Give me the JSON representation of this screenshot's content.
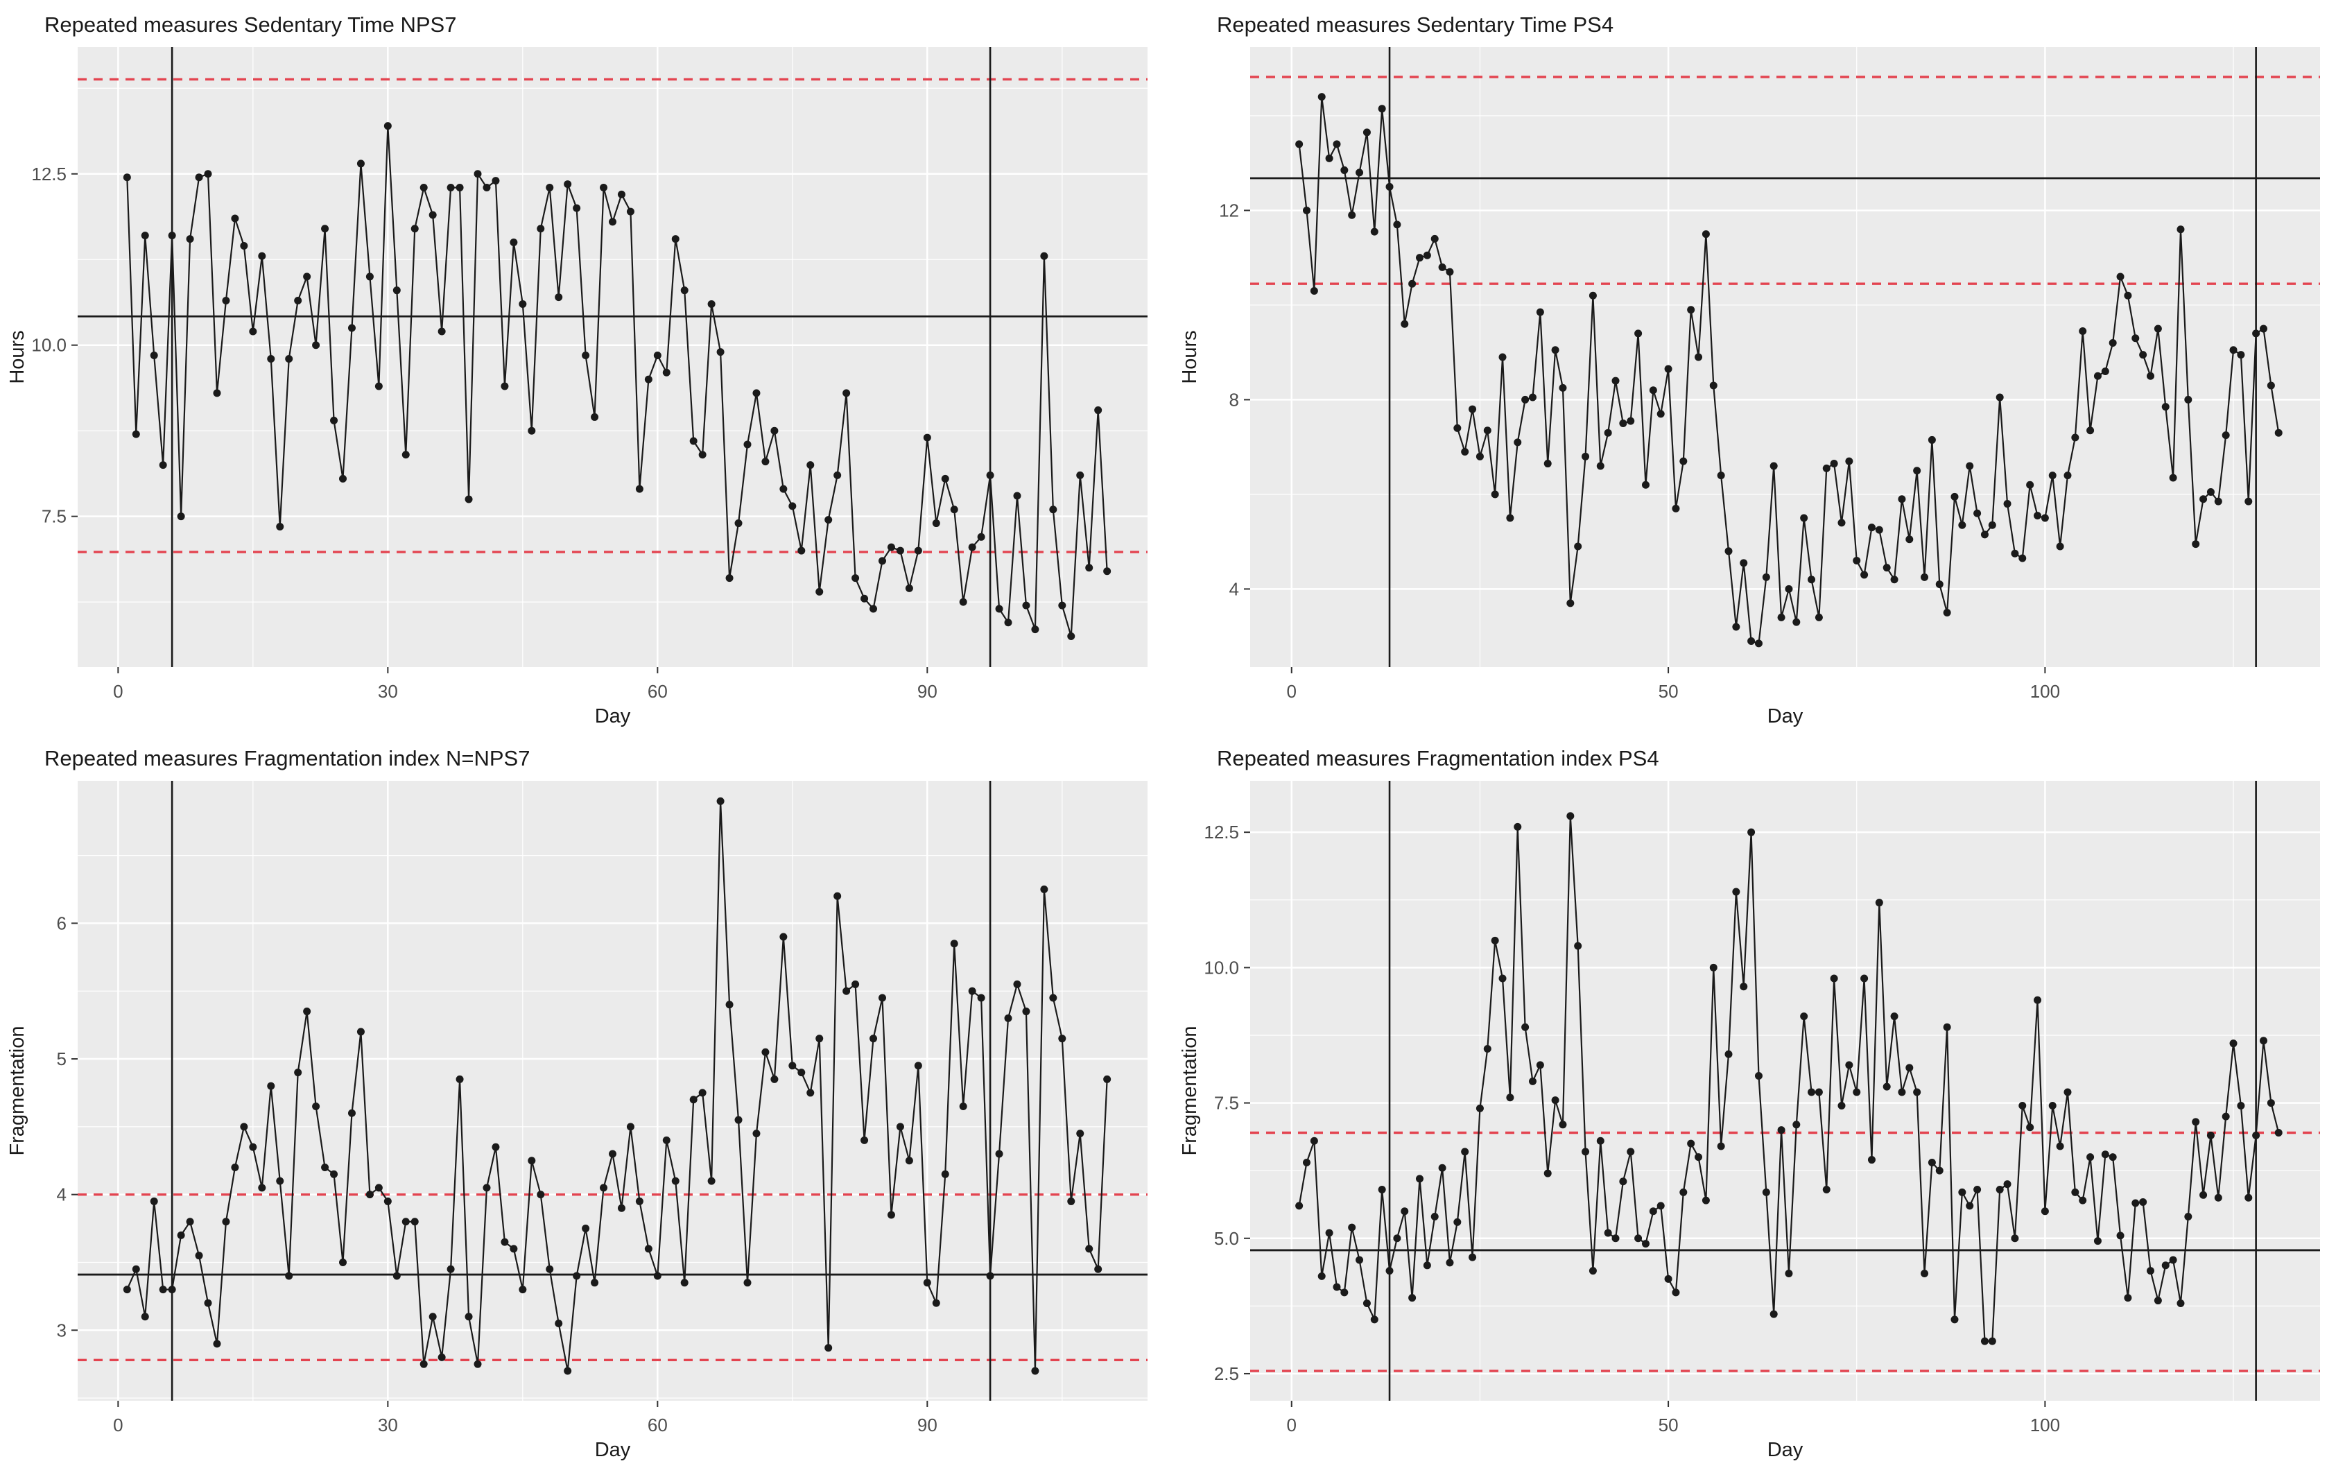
{
  "page": {
    "background": "#ffffff"
  },
  "colors": {
    "panel_bg": "#ebebeb",
    "grid": "#ffffff",
    "series": "#1a1a1a",
    "mean_line": "#1a1a1a",
    "dashed_limit": "#e34450",
    "phase_line": "#1a1a1a",
    "axis_text": "#4d4d4d",
    "title_text": "#1a1a1a",
    "tick_mark": "#333333"
  },
  "chart_data": [
    {
      "type": "line",
      "title": "Repeated measures Sedentary Time NPS7",
      "xlabel": "Day",
      "ylabel": "Hours",
      "legend": "none",
      "grid": "on",
      "x_start": 1,
      "xlim": [
        -4.5,
        114.5
      ],
      "ylim": [
        5.3,
        14.35
      ],
      "xticks": [
        0,
        30,
        60,
        90
      ],
      "xtick_labels": [
        "0",
        "30",
        "60",
        "90"
      ],
      "yticks": [
        7.5,
        10.0,
        12.5
      ],
      "ytick_labels": [
        "7.5",
        "10.0",
        "12.5"
      ],
      "mean": 10.42,
      "upper_limit": 13.88,
      "lower_limit": 6.98,
      "phase_vlines": [
        6,
        97
      ],
      "values": [
        12.45,
        8.7,
        11.6,
        9.85,
        8.25,
        11.6,
        7.5,
        11.55,
        12.45,
        12.5,
        9.3,
        10.65,
        11.85,
        11.45,
        10.2,
        11.3,
        9.8,
        7.35,
        9.8,
        10.65,
        11.0,
        10.0,
        11.7,
        8.9,
        8.05,
        10.25,
        12.65,
        11.0,
        9.4,
        13.2,
        10.8,
        8.4,
        11.7,
        12.3,
        11.9,
        10.2,
        12.3,
        12.3,
        7.75,
        12.5,
        12.3,
        12.4,
        9.4,
        11.5,
        10.6,
        8.75,
        11.7,
        12.3,
        10.7,
        12.35,
        12.0,
        9.85,
        8.95,
        12.3,
        11.8,
        12.2,
        11.95,
        7.9,
        9.5,
        9.85,
        9.6,
        11.55,
        10.8,
        8.6,
        8.4,
        10.6,
        9.9,
        6.6,
        7.4,
        8.55,
        9.3,
        8.3,
        8.75,
        7.9,
        7.65,
        7.0,
        8.25,
        6.4,
        7.45,
        8.1,
        9.3,
        6.6,
        6.3,
        6.15,
        6.85,
        7.05,
        7.0,
        6.45,
        7.0,
        8.65,
        7.4,
        8.05,
        7.6,
        6.25,
        7.05,
        7.2,
        8.1,
        6.15,
        5.95,
        7.8,
        6.2,
        5.85,
        11.3,
        7.6,
        6.2,
        5.75,
        8.1,
        6.75,
        9.05,
        6.7
      ]
    },
    {
      "type": "line",
      "title": "Repeated measures Sedentary Time PS4",
      "xlabel": "Day",
      "ylabel": "Hours",
      "legend": "none",
      "grid": "on",
      "x_start": 1,
      "xlim": [
        -5.5,
        136.5
      ],
      "ylim": [
        2.35,
        15.45
      ],
      "xticks": [
        0,
        50,
        100
      ],
      "xtick_labels": [
        "0",
        "50",
        "100"
      ],
      "yticks": [
        4,
        8,
        12
      ],
      "ytick_labels": [
        "4",
        "8",
        "12"
      ],
      "mean": 12.68,
      "upper_limit": 14.82,
      "lower_limit": 10.45,
      "phase_vlines": [
        13,
        128
      ],
      "values": [
        13.4,
        12.0,
        10.3,
        14.4,
        13.1,
        13.4,
        12.85,
        11.9,
        12.8,
        13.65,
        11.55,
        14.15,
        12.5,
        11.7,
        9.6,
        10.45,
        11.0,
        11.05,
        11.4,
        10.8,
        10.7,
        7.4,
        6.9,
        7.8,
        6.8,
        7.35,
        6.0,
        8.9,
        5.5,
        7.1,
        8.0,
        8.05,
        9.85,
        6.65,
        9.05,
        8.25,
        3.7,
        4.9,
        6.8,
        10.2,
        6.6,
        7.3,
        8.4,
        7.5,
        7.55,
        9.4,
        6.2,
        8.2,
        7.7,
        8.65,
        5.7,
        6.7,
        9.9,
        8.9,
        11.5,
        8.3,
        6.4,
        4.8,
        3.2,
        4.55,
        2.9,
        2.85,
        4.25,
        6.6,
        3.4,
        4.0,
        3.3,
        5.5,
        4.2,
        3.4,
        6.55,
        6.65,
        5.4,
        6.7,
        4.6,
        4.3,
        5.3,
        5.25,
        4.45,
        4.2,
        5.9,
        5.05,
        6.5,
        4.25,
        7.15,
        4.1,
        3.5,
        5.95,
        5.35,
        6.6,
        5.6,
        5.15,
        5.35,
        8.05,
        5.8,
        4.75,
        4.65,
        6.2,
        5.55,
        5.5,
        6.4,
        4.9,
        6.4,
        7.2,
        9.45,
        7.35,
        8.5,
        8.6,
        9.2,
        10.6,
        10.2,
        9.3,
        8.95,
        8.5,
        9.5,
        7.85,
        6.35,
        11.6,
        8.0,
        4.95,
        5.9,
        6.05,
        5.85,
        7.25,
        9.05,
        8.95,
        5.85,
        9.4,
        9.5,
        8.3,
        7.3
      ]
    },
    {
      "type": "line",
      "title": "Repeated measures Fragmentation index N=NPS7",
      "xlabel": "Day",
      "ylabel": "Fragmentation",
      "legend": "none",
      "grid": "on",
      "x_start": 1,
      "xlim": [
        -4.5,
        114.5
      ],
      "ylim": [
        2.48,
        7.05
      ],
      "xticks": [
        0,
        30,
        60,
        90
      ],
      "xtick_labels": [
        "0",
        "30",
        "60",
        "90"
      ],
      "yticks": [
        3,
        4,
        5,
        6
      ],
      "ytick_labels": [
        "3",
        "4",
        "5",
        "6"
      ],
      "mean": 3.41,
      "upper_limit": 4.0,
      "lower_limit": 2.78,
      "phase_vlines": [
        6,
        97
      ],
      "values": [
        3.3,
        3.45,
        3.1,
        3.95,
        3.3,
        3.3,
        3.7,
        3.8,
        3.55,
        3.2,
        2.9,
        3.8,
        4.2,
        4.5,
        4.35,
        4.05,
        4.8,
        4.1,
        3.4,
        4.9,
        5.35,
        4.65,
        4.2,
        4.15,
        3.5,
        4.6,
        5.2,
        4.0,
        4.05,
        3.95,
        3.4,
        3.8,
        3.8,
        2.75,
        3.1,
        2.8,
        3.45,
        4.85,
        3.1,
        2.75,
        4.05,
        4.35,
        3.65,
        3.6,
        3.3,
        4.25,
        4.0,
        3.45,
        3.05,
        2.7,
        3.4,
        3.75,
        3.35,
        4.05,
        4.3,
        3.9,
        4.5,
        3.95,
        3.6,
        3.4,
        4.4,
        4.1,
        3.35,
        4.7,
        4.75,
        4.1,
        6.9,
        5.4,
        4.55,
        3.35,
        4.45,
        5.05,
        4.85,
        5.9,
        4.95,
        4.9,
        4.75,
        5.15,
        2.87,
        6.2,
        5.5,
        5.55,
        4.4,
        5.15,
        5.45,
        3.85,
        4.5,
        4.25,
        4.95,
        3.35,
        3.2,
        4.15,
        5.85,
        4.65,
        5.5,
        5.45,
        3.4,
        4.3,
        5.3,
        5.55,
        5.35,
        2.7,
        6.25,
        5.45,
        5.15,
        3.95,
        4.45,
        3.6,
        3.45,
        4.85
      ]
    },
    {
      "type": "line",
      "title": "Repeated measures Fragmentation index PS4",
      "xlabel": "Day",
      "ylabel": "Fragmentation",
      "legend": "none",
      "grid": "on",
      "x_start": 1,
      "xlim": [
        -5.5,
        136.5
      ],
      "ylim": [
        2.0,
        13.45
      ],
      "xticks": [
        0,
        50,
        100
      ],
      "xtick_labels": [
        "0",
        "50",
        "100"
      ],
      "yticks": [
        2.5,
        5.0,
        7.5,
        10.0,
        12.5
      ],
      "ytick_labels": [
        "2.5",
        "5.0",
        "7.5",
        "10.0",
        "12.5"
      ],
      "mean": 4.78,
      "upper_limit": 6.95,
      "lower_limit": 2.55,
      "phase_vlines": [
        13,
        128
      ],
      "values": [
        5.6,
        6.4,
        6.8,
        4.3,
        5.1,
        4.1,
        4.0,
        5.2,
        4.6,
        3.8,
        3.5,
        5.9,
        4.4,
        5.0,
        5.5,
        3.9,
        6.1,
        4.5,
        5.4,
        6.3,
        4.55,
        5.3,
        6.6,
        4.65,
        7.4,
        8.5,
        10.5,
        9.8,
        7.6,
        12.6,
        8.9,
        7.9,
        8.2,
        6.2,
        7.55,
        7.1,
        12.8,
        10.4,
        6.6,
        4.4,
        6.8,
        5.1,
        5.0,
        6.05,
        6.6,
        5.0,
        4.9,
        5.5,
        5.6,
        4.25,
        4.0,
        5.85,
        6.75,
        6.5,
        5.7,
        10.0,
        6.7,
        8.4,
        11.4,
        9.65,
        12.5,
        8.0,
        5.85,
        3.6,
        7.0,
        4.35,
        7.1,
        9.1,
        7.7,
        7.7,
        5.9,
        9.8,
        7.45,
        8.2,
        7.7,
        9.8,
        6.45,
        11.2,
        7.8,
        9.1,
        7.7,
        8.15,
        7.7,
        4.35,
        6.4,
        6.25,
        8.9,
        3.5,
        5.85,
        5.6,
        5.9,
        3.1,
        3.1,
        5.9,
        6.0,
        5.0,
        7.45,
        7.05,
        9.4,
        5.5,
        7.45,
        6.7,
        7.7,
        5.85,
        5.7,
        6.5,
        4.95,
        6.55,
        6.5,
        5.05,
        3.9,
        5.65,
        5.67,
        4.4,
        3.85,
        4.5,
        4.6,
        3.8,
        5.4,
        7.15,
        5.8,
        6.9,
        5.75,
        7.25,
        8.6,
        7.45,
        5.75,
        6.9,
        8.65,
        7.5,
        6.95
      ]
    }
  ]
}
